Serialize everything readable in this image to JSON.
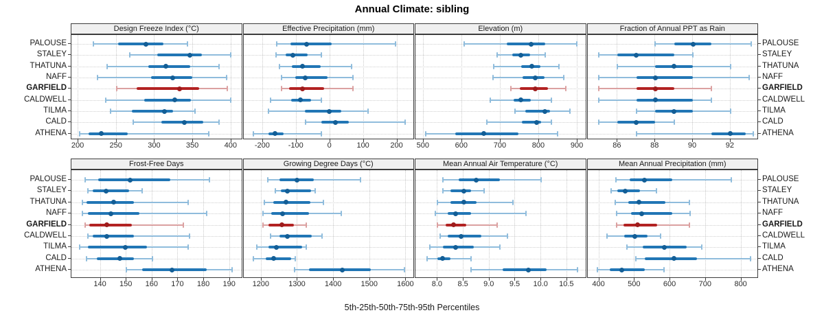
{
  "title": "Annual Climate: sibling",
  "footer": "5th-25th-50th-75th-95th Percentiles",
  "percentile_labels": [
    "5th",
    "25th",
    "50th",
    "75th",
    "95th"
  ],
  "sites": [
    "PALOUSE",
    "STALEY",
    "THATUNA",
    "NAFF",
    "GARFIELD",
    "CALDWELL",
    "TILMA",
    "CALD",
    "ATHENA"
  ],
  "highlight_site": "GARFIELD",
  "colors": {
    "normal_whisker": "#8fbcdc",
    "normal_bar": "#2176b5",
    "normal_dot": "#135e96",
    "highlight_whisker": "#dba0a0",
    "highlight_bar": "#b22222",
    "highlight_dot": "#9e1c1c",
    "panel_header_bg": "#f0f0f0",
    "panel_border": "#3c3c3c",
    "grid": "#c9c9c9"
  },
  "chart_data": {
    "type": "dot-whisker-percentiles",
    "note": "values per site are [p5, p25, p50, p75, p95]",
    "panels": [
      {
        "title": "Design Freeze Index (°C)",
        "grid_row": 0,
        "grid_col": 0,
        "xlim": [
          191,
          415
        ],
        "tick_values": [
          200,
          250,
          300,
          350,
          400
        ],
        "tick_labels": [
          "200",
          "250",
          "300",
          "350",
          "400"
        ],
        "values": {
          "PALOUSE": [
            220,
            252,
            288,
            311,
            343
          ],
          "STALEY": [
            267,
            303,
            346,
            362,
            399
          ],
          "THATUNA": [
            238,
            292,
            314,
            346,
            384
          ],
          "NAFF": [
            225,
            295,
            323,
            349,
            394
          ],
          "GARFIELD": [
            250,
            276,
            332,
            358,
            395
          ],
          "CALDWELL": [
            236,
            286,
            326,
            347,
            399
          ],
          "TILMA": [
            242,
            270,
            313,
            324,
            353
          ],
          "CALD": [
            272,
            309,
            339,
            363,
            384
          ],
          "ATHENA": [
            202,
            213,
            230,
            265,
            371
          ]
        }
      },
      {
        "title": "Effective Precipitation (mm)",
        "grid_row": 0,
        "grid_col": 1,
        "xlim": [
          -258,
          252
        ],
        "tick_values": [
          -200,
          -100,
          0,
          100,
          200
        ],
        "tick_labels": [
          "-200",
          "-100",
          "0",
          "100",
          "200"
        ],
        "values": {
          "PALOUSE": [
            -158,
            -117,
            -69,
            5,
            194
          ],
          "STALEY": [
            -161,
            -132,
            -111,
            -67,
            -25
          ],
          "THATUNA": [
            -151,
            -113,
            -82,
            -29,
            64
          ],
          "NAFF": [
            -145,
            -104,
            -75,
            -7,
            68
          ],
          "GARFIELD": [
            -145,
            -123,
            -82,
            -18,
            68
          ],
          "CALDWELL": [
            -177,
            -116,
            -89,
            -56,
            -27
          ],
          "TILMA": [
            -184,
            -75,
            -2,
            34,
            112
          ],
          "CALD": [
            -72,
            -26,
            16,
            56,
            223
          ],
          "ATHENA": [
            -229,
            -184,
            -164,
            -138,
            -26
          ]
        }
      },
      {
        "title": "Elevation (m)",
        "grid_row": 0,
        "grid_col": 2,
        "xlim": [
          479,
          924
        ],
        "tick_values": [
          500,
          600,
          700,
          800,
          900
        ],
        "tick_labels": [
          "500",
          "600",
          "700",
          "800",
          "900"
        ],
        "values": {
          "PALOUSE": [
            606,
            717,
            780,
            816,
            899
          ],
          "STALEY": [
            691,
            731,
            752,
            777,
            816
          ],
          "THATUNA": [
            683,
            753,
            781,
            804,
            852
          ],
          "NAFF": [
            681,
            758,
            791,
            814,
            865
          ],
          "GARFIELD": [
            727,
            750,
            791,
            824,
            870
          ],
          "CALDWELL": [
            673,
            734,
            753,
            779,
            832
          ],
          "TILMA": [
            737,
            764,
            816,
            829,
            881
          ],
          "CALD": [
            665,
            756,
            793,
            806,
            832
          ],
          "ATHENA": [
            506,
            582,
            656,
            747,
            848
          ]
        }
      },
      {
        "title": "Fraction of Annual PPT as Rain",
        "grid_row": 0,
        "grid_col": 3,
        "xlim": [
          84.4,
          93.5
        ],
        "tick_values": [
          86,
          88,
          90,
          92
        ],
        "tick_labels": [
          "86",
          "88",
          "90",
          "92"
        ],
        "values": {
          "PALOUSE": [
            88,
            89,
            90,
            91,
            93.1
          ],
          "STALEY": [
            85,
            86,
            87,
            89,
            90
          ],
          "THATUNA": [
            86,
            88,
            89,
            90,
            92
          ],
          "NAFF": [
            85,
            87,
            88,
            90,
            93
          ],
          "GARFIELD": [
            85,
            87,
            88,
            89,
            91
          ],
          "CALDWELL": [
            85,
            87,
            88,
            90,
            91
          ],
          "TILMA": [
            87,
            88,
            89,
            90,
            92
          ],
          "CALD": [
            85,
            86,
            87,
            88,
            89
          ],
          "ATHENA": [
            87,
            91,
            92,
            92.8,
            93.2
          ]
        }
      },
      {
        "title": "Frost-Free Days",
        "grid_row": 1,
        "grid_col": 0,
        "xlim": [
          128.7,
          195
        ],
        "tick_values": [
          140,
          150,
          160,
          170,
          180,
          190
        ],
        "tick_labels": [
          "140",
          "150",
          "160",
          "170",
          "180",
          "190"
        ],
        "values": {
          "PALOUSE": [
            134,
            139,
            151.5,
            167,
            182
          ],
          "STALEY": [
            135,
            137,
            142,
            151,
            156
          ],
          "THATUNA": [
            133,
            134.5,
            145,
            153,
            174
          ],
          "NAFF": [
            133,
            135,
            144,
            155,
            181
          ],
          "GARFIELD": [
            134,
            135.5,
            142.5,
            152,
            172
          ],
          "CALDWELL": [
            135,
            137,
            142.5,
            153,
            174.5
          ],
          "TILMA": [
            132,
            135,
            149.5,
            158,
            174
          ],
          "CALD": [
            134.5,
            138.5,
            147.5,
            153,
            160
          ],
          "ATHENA": [
            150,
            156,
            167.5,
            181,
            191
          ]
        }
      },
      {
        "title": "Growing Degree Days (°C)",
        "grid_row": 1,
        "grid_col": 1,
        "xlim": [
          1150,
          1624
        ],
        "tick_values": [
          1200,
          1300,
          1400,
          1500,
          1600
        ],
        "tick_labels": [
          "1200",
          "1300",
          "1400",
          "1500",
          "1600"
        ],
        "values": {
          "PALOUSE": [
            1217,
            1249,
            1299,
            1345,
            1473
          ],
          "STALEY": [
            1238,
            1253,
            1271,
            1337,
            1348
          ],
          "THATUNA": [
            1208,
            1233,
            1268,
            1335,
            1371
          ],
          "NAFF": [
            1204,
            1227,
            1259,
            1331,
            1420
          ],
          "GARFIELD": [
            1204,
            1220,
            1257,
            1290,
            1323
          ],
          "CALDWELL": [
            1225,
            1249,
            1272,
            1339,
            1367
          ],
          "TILMA": [
            1187,
            1220,
            1241,
            1312,
            1323
          ],
          "CALD": [
            1177,
            1211,
            1233,
            1282,
            1293
          ],
          "ATHENA": [
            1291,
            1331,
            1423,
            1502,
            1595
          ]
        }
      },
      {
        "title": "Mean Annual Air Temperature (°C)",
        "grid_row": 1,
        "grid_col": 2,
        "xlim": [
          7.57,
          10.88
        ],
        "tick_values": [
          8.0,
          8.5,
          9.0,
          9.5,
          10.0,
          10.5
        ],
        "tick_labels": [
          "8.0",
          "8.5",
          "9.0",
          "9.5",
          "10.0",
          "10.5"
        ],
        "values": {
          "PALOUSE": [
            8.1,
            8.4,
            8.75,
            9.2,
            10.0
          ],
          "STALEY": [
            8.1,
            8.25,
            8.5,
            8.65,
            8.9
          ],
          "THATUNA": [
            8.0,
            8.25,
            8.5,
            8.75,
            9.45
          ],
          "NAFF": [
            7.95,
            8.2,
            8.35,
            8.65,
            9.7
          ],
          "GARFIELD": [
            8.0,
            8.15,
            8.3,
            8.55,
            9.15
          ],
          "CALDWELL": [
            8.05,
            8.2,
            8.45,
            8.85,
            9.35
          ],
          "TILMA": [
            7.85,
            8.1,
            8.35,
            8.7,
            9.2
          ],
          "CALD": [
            7.8,
            8.0,
            8.1,
            8.25,
            8.65
          ],
          "ATHENA": [
            8.65,
            9.25,
            9.75,
            10.1,
            10.7
          ]
        }
      },
      {
        "title": "Mean Annual Precipitation (mm)",
        "grid_row": 1,
        "grid_col": 3,
        "xlim": [
          367,
          849
        ],
        "tick_values": [
          400,
          500,
          600,
          700,
          800
        ],
        "tick_labels": [
          "400",
          "500",
          "600",
          "700",
          "800"
        ],
        "values": {
          "PALOUSE": [
            448,
            485,
            528,
            605,
            772
          ],
          "STALEY": [
            434,
            452,
            474,
            515,
            561
          ],
          "THATUNA": [
            445,
            482,
            511,
            587,
            653
          ],
          "NAFF": [
            450,
            490,
            519,
            605,
            656
          ],
          "GARFIELD": [
            450,
            468,
            508,
            564,
            653
          ],
          "CALDWELL": [
            422,
            470,
            500,
            537,
            573
          ],
          "TILMA": [
            478,
            522,
            584,
            646,
            689
          ],
          "CALD": [
            504,
            529,
            611,
            676,
            825
          ],
          "ATHENA": [
            395,
            429,
            463,
            528,
            582
          ]
        }
      }
    ]
  }
}
